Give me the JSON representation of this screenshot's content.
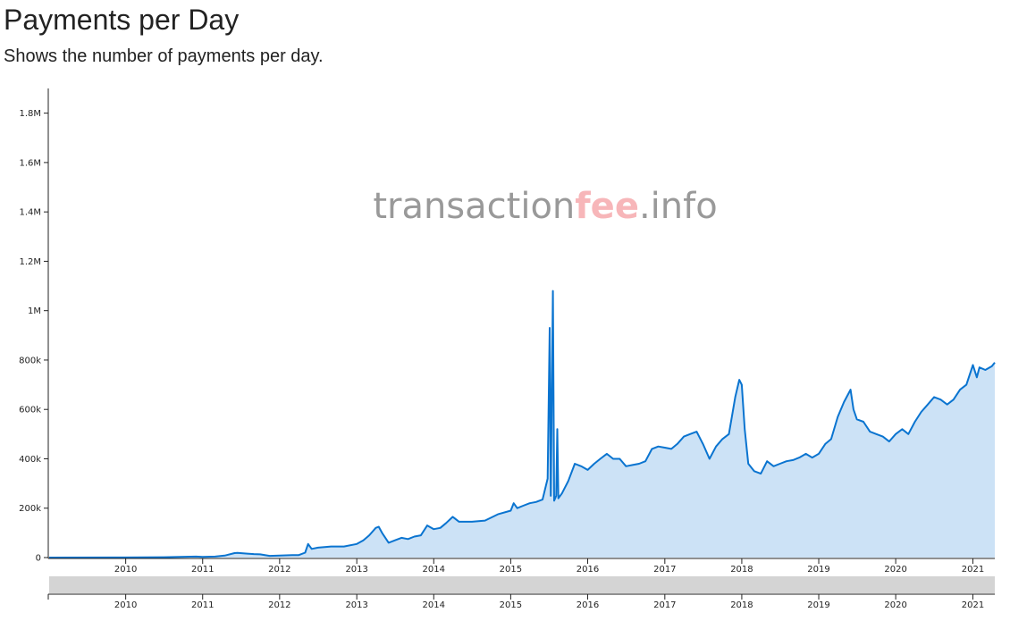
{
  "header": {
    "title": "Payments per Day",
    "subtitle": "Shows the number of payments per day."
  },
  "watermark": {
    "part1": "transaction",
    "part2": "fee",
    "part3": ".info",
    "color_main": "#999999",
    "color_accent": "#f7b6b9"
  },
  "colors": {
    "line": "#0a74d0",
    "area": "#cce2f6",
    "brush": "#d4d4d4"
  },
  "chart_data": {
    "type": "area",
    "title": "Payments per Day",
    "subtitle": "Shows the number of payments per day.",
    "xlim": [
      "2009-01-03",
      "2021-04-15"
    ],
    "ylim": [
      0,
      1900000
    ],
    "x_ticks": [
      "2010",
      "2011",
      "2012",
      "2013",
      "2014",
      "2015",
      "2016",
      "2017",
      "2018",
      "2019",
      "2020",
      "2021"
    ],
    "y_ticks": [
      {
        "value": 0,
        "label": "0"
      },
      {
        "value": 200000,
        "label": "200k"
      },
      {
        "value": 400000,
        "label": "400k"
      },
      {
        "value": 600000,
        "label": "600k"
      },
      {
        "value": 800000,
        "label": "800k"
      },
      {
        "value": 1000000,
        "label": "1M"
      },
      {
        "value": 1200000,
        "label": "1.2M"
      },
      {
        "value": 1400000,
        "label": "1.4M"
      },
      {
        "value": 1600000,
        "label": "1.6M"
      },
      {
        "value": 1800000,
        "label": "1.8M"
      }
    ],
    "grid": false,
    "brush_range": [
      "2009-01-03",
      "2021-04-15"
    ],
    "series": [
      {
        "values": [
          [
            "2009-01-03",
            0
          ],
          [
            "2010-01-01",
            500
          ],
          [
            "2010-07-01",
            1500
          ],
          [
            "2010-12-01",
            4000
          ],
          [
            "2011-01-01",
            3000
          ],
          [
            "2011-03-01",
            4000
          ],
          [
            "2011-04-15",
            8000
          ],
          [
            "2011-06-01",
            18000
          ],
          [
            "2011-06-15",
            19000
          ],
          [
            "2011-08-01",
            16000
          ],
          [
            "2011-09-01",
            14000
          ],
          [
            "2011-10-01",
            13000
          ],
          [
            "2011-11-15",
            7000
          ],
          [
            "2012-01-01",
            8000
          ],
          [
            "2012-03-01",
            10000
          ],
          [
            "2012-04-01",
            10000
          ],
          [
            "2012-05-01",
            20000
          ],
          [
            "2012-05-15",
            55000
          ],
          [
            "2012-06-01",
            35000
          ],
          [
            "2012-07-01",
            40000
          ],
          [
            "2012-09-01",
            45000
          ],
          [
            "2012-11-01",
            45000
          ],
          [
            "2013-01-01",
            55000
          ],
          [
            "2013-02-01",
            70000
          ],
          [
            "2013-03-01",
            90000
          ],
          [
            "2013-04-01",
            120000
          ],
          [
            "2013-04-15",
            125000
          ],
          [
            "2013-05-01",
            100000
          ],
          [
            "2013-06-01",
            60000
          ],
          [
            "2013-07-01",
            70000
          ],
          [
            "2013-08-01",
            80000
          ],
          [
            "2013-09-01",
            75000
          ],
          [
            "2013-10-01",
            85000
          ],
          [
            "2013-11-01",
            90000
          ],
          [
            "2013-12-01",
            130000
          ],
          [
            "2014-01-01",
            115000
          ],
          [
            "2014-02-01",
            120000
          ],
          [
            "2014-03-01",
            140000
          ],
          [
            "2014-04-01",
            165000
          ],
          [
            "2014-05-01",
            145000
          ],
          [
            "2014-07-01",
            145000
          ],
          [
            "2014-09-01",
            150000
          ],
          [
            "2014-11-01",
            175000
          ],
          [
            "2015-01-01",
            190000
          ],
          [
            "2015-01-15",
            220000
          ],
          [
            "2015-02-01",
            200000
          ],
          [
            "2015-03-01",
            210000
          ],
          [
            "2015-04-01",
            220000
          ],
          [
            "2015-05-01",
            225000
          ],
          [
            "2015-06-01",
            235000
          ],
          [
            "2015-06-25",
            320000
          ],
          [
            "2015-07-05",
            930000
          ],
          [
            "2015-07-10",
            250000
          ],
          [
            "2015-07-20",
            1080000
          ],
          [
            "2015-07-26",
            230000
          ],
          [
            "2015-08-05",
            250000
          ],
          [
            "2015-08-10",
            520000
          ],
          [
            "2015-08-15",
            240000
          ],
          [
            "2015-09-01",
            260000
          ],
          [
            "2015-10-01",
            310000
          ],
          [
            "2015-11-01",
            380000
          ],
          [
            "2015-12-01",
            370000
          ],
          [
            "2016-01-01",
            355000
          ],
          [
            "2016-02-01",
            380000
          ],
          [
            "2016-03-01",
            400000
          ],
          [
            "2016-04-01",
            420000
          ],
          [
            "2016-05-01",
            400000
          ],
          [
            "2016-06-01",
            400000
          ],
          [
            "2016-07-01",
            370000
          ],
          [
            "2016-08-01",
            375000
          ],
          [
            "2016-09-01",
            380000
          ],
          [
            "2016-10-01",
            390000
          ],
          [
            "2016-11-01",
            440000
          ],
          [
            "2016-12-01",
            450000
          ],
          [
            "2017-01-01",
            445000
          ],
          [
            "2017-02-01",
            440000
          ],
          [
            "2017-03-01",
            460000
          ],
          [
            "2017-04-01",
            490000
          ],
          [
            "2017-05-01",
            500000
          ],
          [
            "2017-06-01",
            510000
          ],
          [
            "2017-07-01",
            460000
          ],
          [
            "2017-08-01",
            400000
          ],
          [
            "2017-09-01",
            450000
          ],
          [
            "2017-10-01",
            480000
          ],
          [
            "2017-11-01",
            500000
          ],
          [
            "2017-12-01",
            650000
          ],
          [
            "2017-12-20",
            720000
          ],
          [
            "2018-01-01",
            700000
          ],
          [
            "2018-01-15",
            520000
          ],
          [
            "2018-02-01",
            380000
          ],
          [
            "2018-03-01",
            350000
          ],
          [
            "2018-04-01",
            340000
          ],
          [
            "2018-05-01",
            390000
          ],
          [
            "2018-06-01",
            370000
          ],
          [
            "2018-07-01",
            380000
          ],
          [
            "2018-08-01",
            390000
          ],
          [
            "2018-09-01",
            395000
          ],
          [
            "2018-10-01",
            405000
          ],
          [
            "2018-11-01",
            420000
          ],
          [
            "2018-12-01",
            405000
          ],
          [
            "2019-01-01",
            420000
          ],
          [
            "2019-02-01",
            460000
          ],
          [
            "2019-03-01",
            480000
          ],
          [
            "2019-04-01",
            570000
          ],
          [
            "2019-05-01",
            630000
          ],
          [
            "2019-06-01",
            680000
          ],
          [
            "2019-06-15",
            600000
          ],
          [
            "2019-07-01",
            560000
          ],
          [
            "2019-08-01",
            550000
          ],
          [
            "2019-09-01",
            510000
          ],
          [
            "2019-10-01",
            500000
          ],
          [
            "2019-11-01",
            490000
          ],
          [
            "2019-12-01",
            470000
          ],
          [
            "2020-01-01",
            500000
          ],
          [
            "2020-02-01",
            520000
          ],
          [
            "2020-03-01",
            500000
          ],
          [
            "2020-04-01",
            550000
          ],
          [
            "2020-05-01",
            590000
          ],
          [
            "2020-06-01",
            620000
          ],
          [
            "2020-07-01",
            650000
          ],
          [
            "2020-08-01",
            640000
          ],
          [
            "2020-09-01",
            620000
          ],
          [
            "2020-10-01",
            640000
          ],
          [
            "2020-11-01",
            680000
          ],
          [
            "2020-12-01",
            700000
          ],
          [
            "2021-01-01",
            780000
          ],
          [
            "2021-01-20",
            730000
          ],
          [
            "2021-02-01",
            770000
          ],
          [
            "2021-03-01",
            760000
          ],
          [
            "2021-04-01",
            775000
          ],
          [
            "2021-04-15",
            790000
          ]
        ]
      }
    ]
  }
}
